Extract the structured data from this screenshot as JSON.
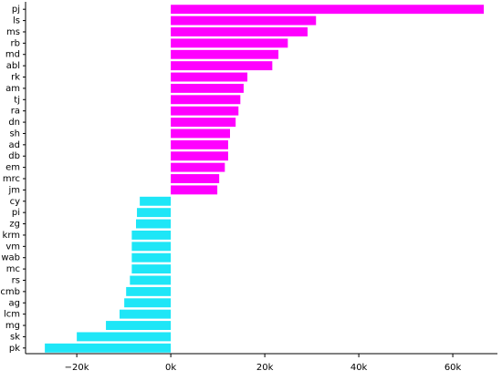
{
  "chart_data": {
    "type": "barh",
    "categories": [
      "pj",
      "ls",
      "ms",
      "rb",
      "md",
      "abl",
      "rk",
      "am",
      "tj",
      "ra",
      "dn",
      "sh",
      "ad",
      "db",
      "em",
      "mrc",
      "jm",
      "cy",
      "pi",
      "zg",
      "krm",
      "vm",
      "wab",
      "mc",
      "rs",
      "cmb",
      "ag",
      "lcm",
      "mg",
      "sk",
      "pk"
    ],
    "values": [
      66600,
      30900,
      29100,
      24900,
      22900,
      21600,
      16300,
      15500,
      14800,
      14400,
      13800,
      12600,
      12200,
      12200,
      11500,
      10300,
      9900,
      -6600,
      -7200,
      -7400,
      -8300,
      -8300,
      -8300,
      -8300,
      -8700,
      -9500,
      -9900,
      -10900,
      -13800,
      -20000,
      -26800
    ],
    "positive_color": "#ff00ff",
    "negative_color": "#1ee6f7",
    "xlim": [
      -30900,
      69500
    ],
    "xticks": [
      {
        "value": -20000,
        "label": "−20k"
      },
      {
        "value": 0,
        "label": "0k"
      },
      {
        "value": 20000,
        "label": "20k"
      },
      {
        "value": 40000,
        "label": "40k"
      },
      {
        "value": 60000,
        "label": "60k"
      }
    ]
  }
}
